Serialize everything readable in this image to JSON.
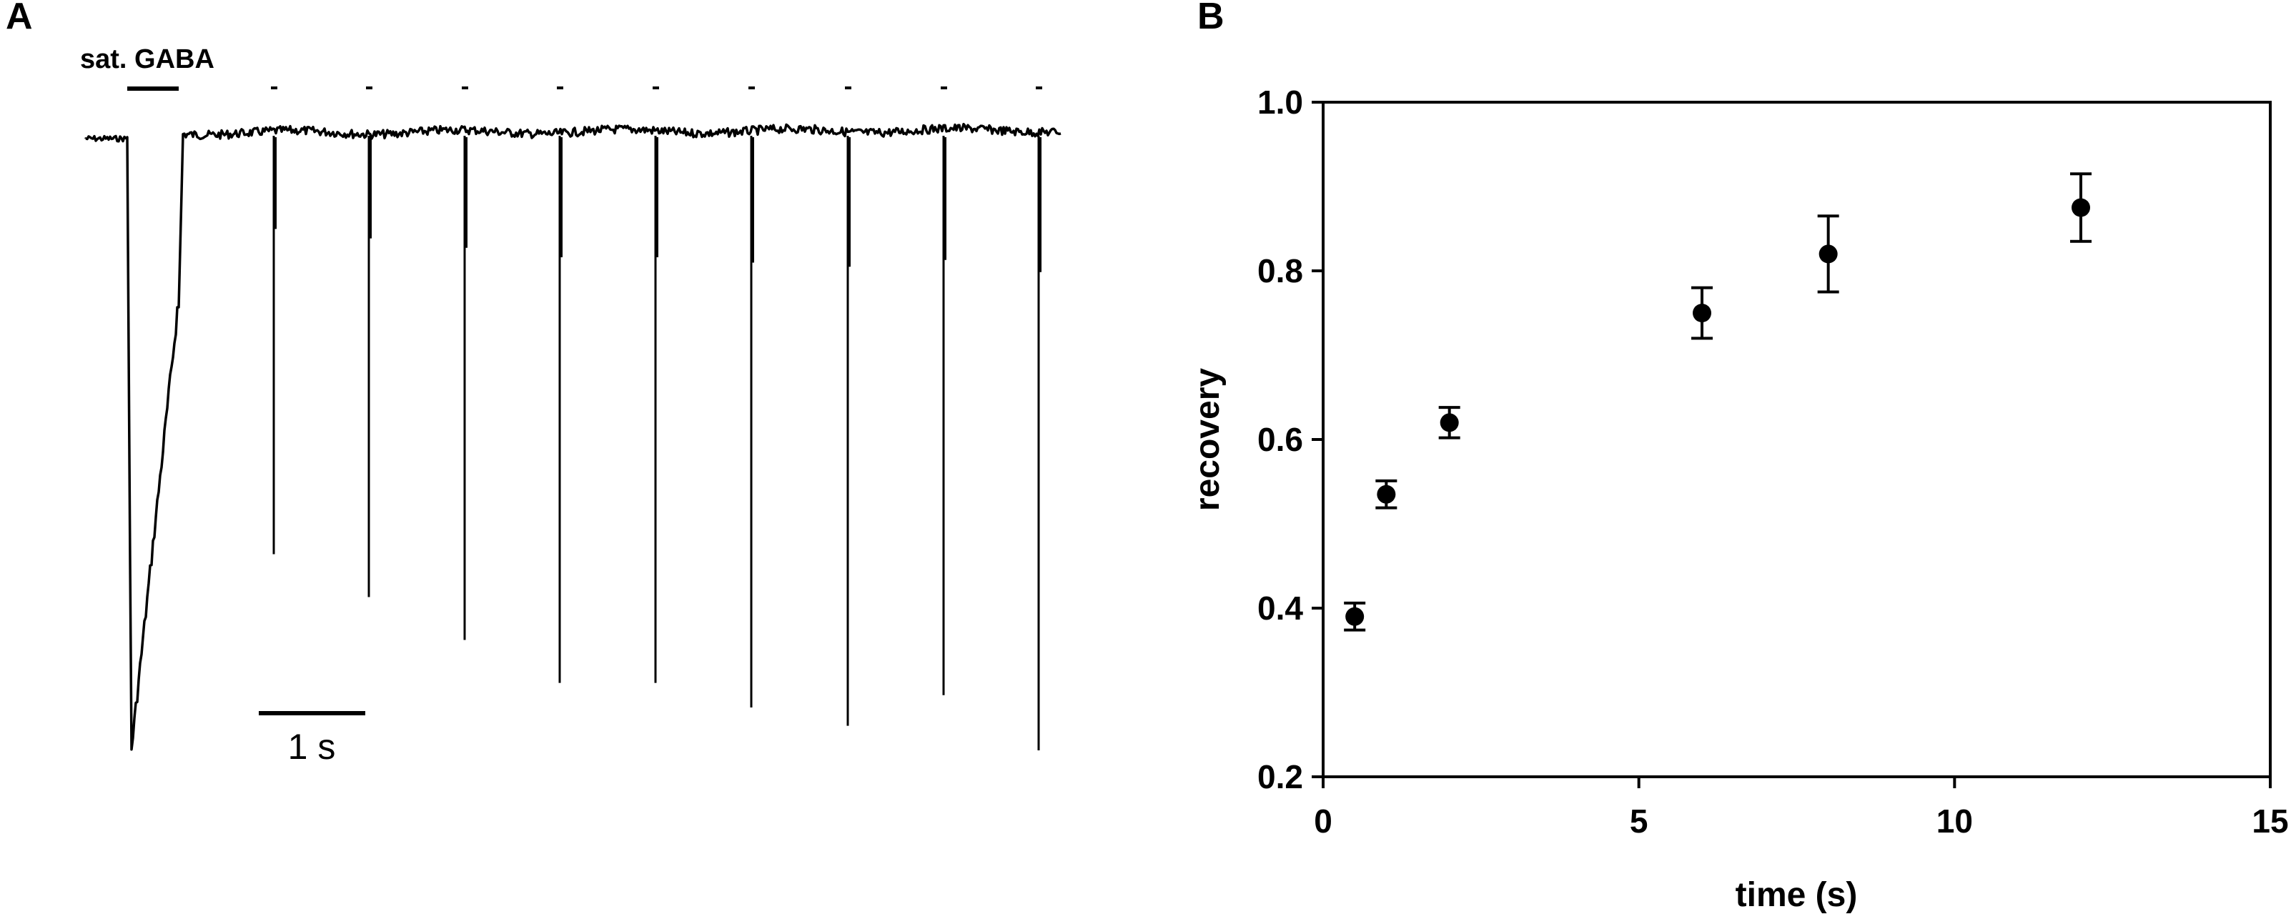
{
  "panel_a": {
    "letter": "A",
    "stim_label": "sat. GABA",
    "scale_label": "1 s"
  },
  "panel_b": {
    "letter": "B"
  },
  "chart_data": [
    {
      "type": "line",
      "panel": "A",
      "description_text": "",
      "trace": {
        "baseline": 0.0,
        "conditioning_response": {
          "label": "sat. GABA",
          "peak": -1.0
        },
        "test_pulse_peaks": [
          -0.68,
          -0.75,
          -0.82,
          -0.89,
          -0.89,
          -0.93,
          -0.96,
          -0.91,
          -1.0
        ]
      },
      "scale_bar": {
        "label": "1 s",
        "value_seconds": 1
      }
    },
    {
      "type": "scatter",
      "panel": "B",
      "xlabel": "time (s)",
      "ylabel": "recovery",
      "xlim": [
        0,
        15
      ],
      "ylim": [
        0.2,
        1.0
      ],
      "xticks": [
        0,
        5,
        10,
        15
      ],
      "yticks": [
        0.2,
        0.4,
        0.6,
        0.8,
        1.0
      ],
      "xtick_labels": [
        "0",
        "5",
        "10",
        "15"
      ],
      "ytick_labels": [
        "0.2",
        "0.4",
        "0.6",
        "0.8",
        "1.0"
      ],
      "grid": false,
      "series": [
        {
          "x": [
            0.5,
            1,
            2,
            6,
            8,
            12
          ],
          "y": [
            0.39,
            0.535,
            0.62,
            0.75,
            0.82,
            0.875
          ],
          "error": [
            0.016,
            0.016,
            0.018,
            0.03,
            0.045,
            0.04
          ]
        }
      ]
    }
  ]
}
